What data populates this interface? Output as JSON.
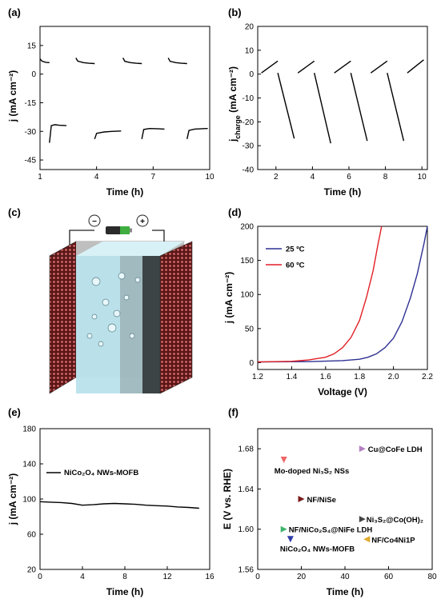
{
  "chart_data": [
    {
      "panel": "(a)",
      "type": "line",
      "xlabel": "Time (h)",
      "ylabel": "j (mA cm⁻²)",
      "xlim": [
        1,
        10
      ],
      "ylim": [
        -50,
        25
      ],
      "xticks": [
        1,
        4,
        7,
        10
      ],
      "yticks": [
        15,
        0,
        -15,
        -30,
        -45
      ],
      "segments": [
        {
          "kind": "charge",
          "x": [
            1.0,
            1.1,
            1.3,
            1.5
          ],
          "y": [
            8,
            6.8,
            6.2,
            6.0
          ]
        },
        {
          "kind": "discharge",
          "x": [
            1.5,
            1.6,
            1.8,
            2.0,
            2.4
          ],
          "y": [
            -36,
            -27,
            -26.5,
            -26.8,
            -27
          ]
        },
        {
          "kind": "charge",
          "x": [
            2.9,
            3.0,
            3.3,
            3.6,
            3.9
          ],
          "y": [
            8.5,
            6.8,
            6.0,
            5.7,
            5.5
          ]
        },
        {
          "kind": "discharge",
          "x": [
            3.9,
            4.0,
            4.4,
            4.8,
            5.3
          ],
          "y": [
            -34,
            -31,
            -30.3,
            -30,
            -29.8
          ]
        },
        {
          "kind": "charge",
          "x": [
            5.4,
            5.5,
            5.8,
            6.1,
            6.4
          ],
          "y": [
            8.5,
            6.7,
            6.0,
            5.7,
            5.5
          ]
        },
        {
          "kind": "discharge",
          "x": [
            6.4,
            6.5,
            6.8,
            7.2,
            7.6
          ],
          "y": [
            -34,
            -29,
            -28.5,
            -28.6,
            -28.8
          ]
        },
        {
          "kind": "charge",
          "x": [
            7.8,
            7.9,
            8.2,
            8.5,
            8.8
          ],
          "y": [
            8.5,
            6.7,
            6.0,
            5.7,
            5.5
          ]
        },
        {
          "kind": "discharge",
          "x": [
            8.8,
            8.9,
            9.2,
            9.6,
            9.9
          ],
          "y": [
            -34,
            -29.5,
            -28.8,
            -28.6,
            -28.5
          ]
        },
        {
          "kind": "charge",
          "x": [
            10.1,
            10.2,
            10.5,
            10.8,
            11.0
          ],
          "y": [
            8.5,
            6.7,
            6.0,
            5.8,
            5.7
          ]
        }
      ]
    },
    {
      "panel": "(b)",
      "type": "line",
      "xlabel": "Time (h)",
      "ylabel": "j",
      "ylabel_sub": "charge",
      "ylabel_unit": " (mA cm⁻²)",
      "xlim": [
        1,
        10.3
      ],
      "ylim": [
        -40,
        20
      ],
      "xticks": [
        2,
        4,
        6,
        8,
        10
      ],
      "yticks": [
        20,
        10,
        0,
        -10,
        -20,
        -30,
        -40
      ],
      "segments": [
        {
          "x": [
            1.2,
            2.1
          ],
          "y": [
            0.5,
            5.5
          ]
        },
        {
          "x": [
            2.1,
            3.0
          ],
          "y": [
            0.5,
            -27
          ]
        },
        {
          "x": [
            3.2,
            4.1
          ],
          "y": [
            0.5,
            5.5
          ]
        },
        {
          "x": [
            4.1,
            5.0
          ],
          "y": [
            0.5,
            -29
          ]
        },
        {
          "x": [
            5.2,
            6.1
          ],
          "y": [
            0.5,
            5.5
          ]
        },
        {
          "x": [
            6.1,
            7.0
          ],
          "y": [
            0.5,
            -28
          ]
        },
        {
          "x": [
            7.2,
            8.1
          ],
          "y": [
            0.5,
            5.5
          ]
        },
        {
          "x": [
            8.1,
            9.0
          ],
          "y": [
            0.5,
            -28
          ]
        },
        {
          "x": [
            9.2,
            10.1
          ],
          "y": [
            0.5,
            6
          ]
        }
      ]
    },
    {
      "panel": "(d)",
      "type": "line",
      "xlabel": "Voltage (V)",
      "ylabel": "j (mA cm⁻²)",
      "xlim": [
        1.2,
        2.2
      ],
      "ylim": [
        -10,
        200
      ],
      "xticks": [
        "1.2",
        "1.4",
        "1.6",
        "1.8",
        "2.0",
        "2.2"
      ],
      "yticks": [
        0,
        50,
        100,
        150,
        200
      ],
      "series": [
        {
          "name": "25 ºC",
          "color": "#2e3192",
          "x": [
            1.2,
            1.5,
            1.7,
            1.8,
            1.85,
            1.9,
            1.95,
            2.0,
            2.05,
            2.1,
            2.14,
            2.18,
            2.2
          ],
          "y": [
            1,
            1.5,
            3,
            5,
            8,
            13,
            22,
            36,
            60,
            95,
            130,
            175,
            200
          ]
        },
        {
          "name": "60 ºC",
          "color": "#e21f26",
          "x": [
            1.2,
            1.4,
            1.5,
            1.6,
            1.65,
            1.7,
            1.75,
            1.8,
            1.84,
            1.88,
            1.91,
            1.93
          ],
          "y": [
            1,
            2,
            4,
            8,
            13,
            22,
            37,
            62,
            95,
            135,
            175,
            200
          ]
        }
      ]
    },
    {
      "panel": "(e)",
      "type": "line",
      "xlabel": "Time (h)",
      "ylabel": "j (mA cm⁻²)",
      "xlim": [
        0,
        16
      ],
      "ylim": [
        20,
        180
      ],
      "xticks": [
        0,
        4,
        8,
        12,
        16
      ],
      "yticks": [
        180,
        140,
        100,
        60,
        20
      ],
      "series": [
        {
          "name": "NiCo₂O₄ NWs-MOFB",
          "color": "#000000",
          "x": [
            0,
            1,
            2,
            3,
            4,
            5,
            6,
            7,
            8,
            9,
            10,
            11,
            12,
            13,
            14,
            15
          ],
          "y": [
            97,
            96.5,
            96,
            95,
            93,
            93.5,
            94.5,
            95,
            94.5,
            94,
            93,
            92.5,
            92,
            91,
            90.5,
            89.5
          ]
        }
      ]
    },
    {
      "panel": "(f)",
      "type": "scatter",
      "xlabel": "Time (h)",
      "ylabel": "E (V vs. RHE)",
      "xlim": [
        0,
        80
      ],
      "ylim": [
        1.56,
        1.7
      ],
      "xticks": [
        0,
        20,
        40,
        60,
        80
      ],
      "yticks": [
        "1.56",
        "1.60",
        "1.64",
        "1.68"
      ],
      "points": [
        {
          "label": "Cu@CoFe LDH",
          "x": 48,
          "y": 1.68,
          "color": "#b57ec2",
          "shape": "right"
        },
        {
          "label": "Mo-doped Ni₃S₂ NSs",
          "x": 12,
          "y": 1.669,
          "color": "#f06565",
          "shape": "down"
        },
        {
          "label": "NF/NiSe",
          "x": 20,
          "y": 1.63,
          "color": "#7b1c1c",
          "shape": "right"
        },
        {
          "label": "Ni₃S₂@Co(OH)₂",
          "x": 48,
          "y": 1.61,
          "color": "#444444",
          "shape": "right"
        },
        {
          "label": "NF/NiCo₂S₄@NiFe LDH",
          "x": 12,
          "y": 1.6,
          "color": "#3fb56b",
          "shape": "right"
        },
        {
          "label": "NiCo₂O₄ NWs-MOFB",
          "x": 15,
          "y": 1.59,
          "color": "#2e3aa8",
          "shape": "down"
        },
        {
          "label": "NF/Co4Ni1P",
          "x": 50,
          "y": 1.59,
          "color": "#e0a82a",
          "shape": "left"
        }
      ]
    }
  ],
  "panel_labels": {
    "a": "(a)",
    "b": "(b)",
    "c": "(c)",
    "d": "(d)",
    "e": "(e)",
    "f": "(f)"
  },
  "schematic": {
    "minus": "−",
    "plus": "+"
  }
}
